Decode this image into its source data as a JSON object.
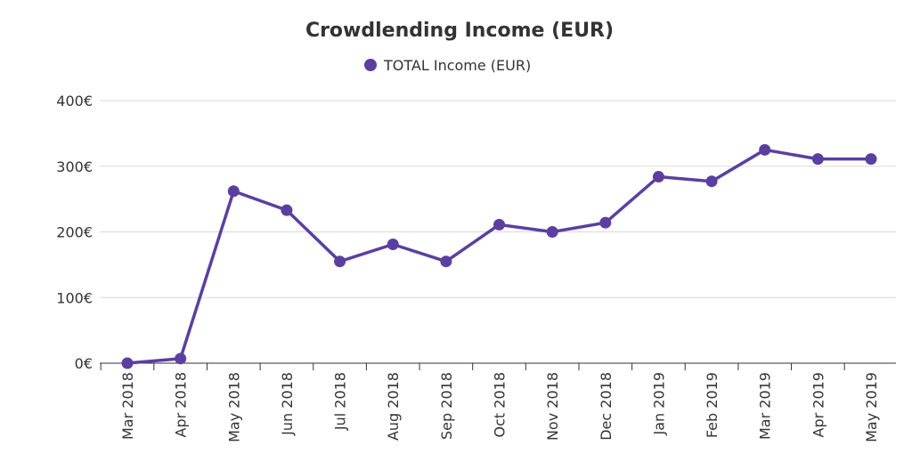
{
  "colors": {
    "series": "#5b3fa0",
    "text": "#333333",
    "grid": "#d9d9d9"
  },
  "chart_data": {
    "type": "line",
    "title": "Crowdlending Income (EUR)",
    "xlabel": "",
    "ylabel": "",
    "categories": [
      "Mar 2018",
      "Apr 2018",
      "May 2018",
      "Jun 2018",
      "Jul 2018",
      "Aug 2018",
      "Sep 2018",
      "Oct 2018",
      "Nov 2018",
      "Dec 2018",
      "Jan 2019",
      "Feb 2019",
      "Mar 2019",
      "Apr 2019",
      "May 2019"
    ],
    "series": [
      {
        "name": "TOTAL Income (EUR)",
        "values": [
          0,
          7,
          262,
          233,
          155,
          181,
          155,
          211,
          200,
          214,
          284,
          277,
          325,
          311,
          311
        ]
      }
    ],
    "ylim": [
      0,
      400
    ],
    "yticks": [
      0,
      100,
      200,
      300,
      400
    ],
    "ytick_labels": [
      "0€",
      "100€",
      "200€",
      "300€",
      "400€"
    ],
    "legend_position": "top-center",
    "grid": true
  }
}
